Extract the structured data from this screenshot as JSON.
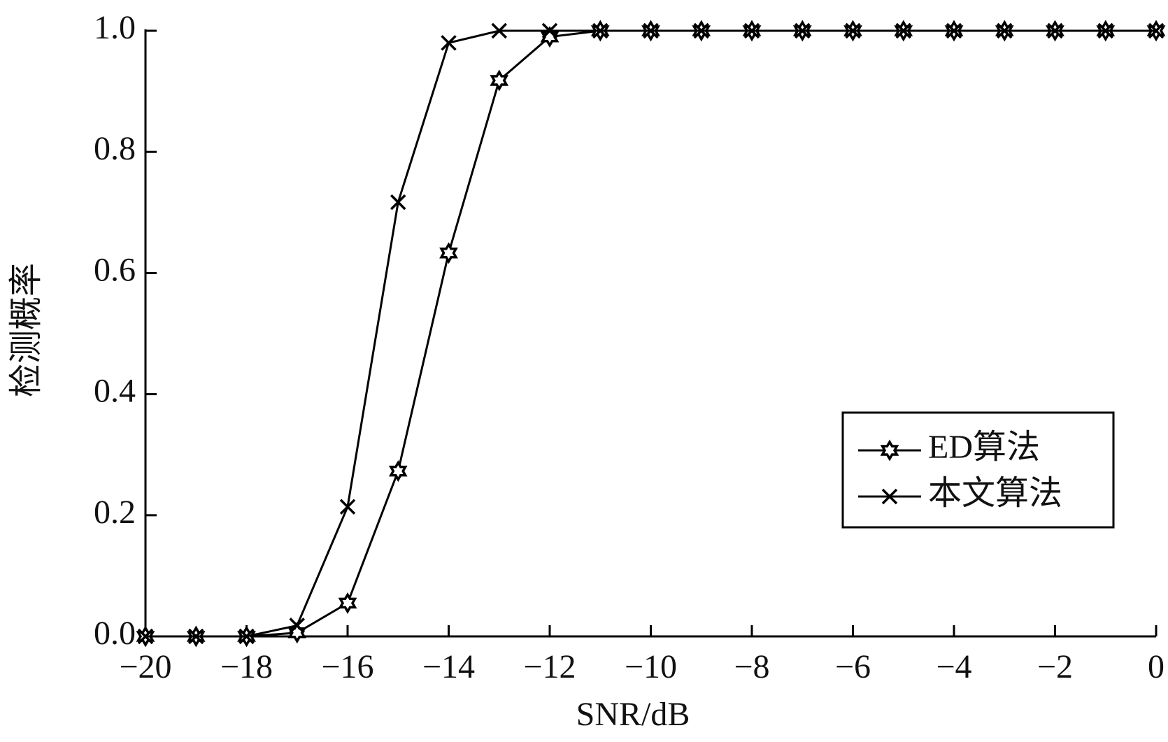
{
  "chart_data": {
    "type": "line",
    "x_label": "SNR/dB",
    "y_label": "检测概率",
    "x": [
      -20,
      -19,
      -18,
      -17,
      -16,
      -15,
      -14,
      -13,
      -12,
      -11,
      -10,
      -9,
      -8,
      -7,
      -6,
      -5,
      -4,
      -3,
      -2,
      -1,
      0
    ],
    "series": [
      {
        "name": "ED算法",
        "color": "#000000",
        "marker": "star",
        "values": [
          0,
          0,
          0,
          0.006,
          0.055,
          0.273,
          0.633,
          0.918,
          0.99,
          1,
          1,
          1,
          1,
          1,
          1,
          1,
          1,
          1,
          1,
          1,
          1
        ]
      },
      {
        "name": "本文算法",
        "color": "#000000",
        "marker": "x",
        "values": [
          0,
          0,
          0,
          0.018,
          0.214,
          0.717,
          0.98,
          1,
          1,
          1,
          1,
          1,
          1,
          1,
          1,
          1,
          1,
          1,
          1,
          1,
          1
        ]
      }
    ],
    "xlim": [
      -20,
      0
    ],
    "xticks": [
      {
        "value": -20,
        "label": "−20"
      },
      {
        "value": -18,
        "label": "−18"
      },
      {
        "value": -16,
        "label": "−16"
      },
      {
        "value": -14,
        "label": "−14"
      },
      {
        "value": -12,
        "label": "−12"
      },
      {
        "value": -10,
        "label": "−10"
      },
      {
        "value": -8,
        "label": "−8"
      },
      {
        "value": -6,
        "label": "−6"
      },
      {
        "value": -4,
        "label": "−4"
      },
      {
        "value": -2,
        "label": "−2"
      },
      0
    ],
    "ylim": [
      0,
      1
    ],
    "yticks": [
      {
        "value": 0,
        "label": "0.0"
      },
      0.2,
      0.4,
      0.6,
      0.8,
      {
        "value": 1,
        "label": "1.0"
      }
    ],
    "grid": false,
    "legend": "right"
  }
}
